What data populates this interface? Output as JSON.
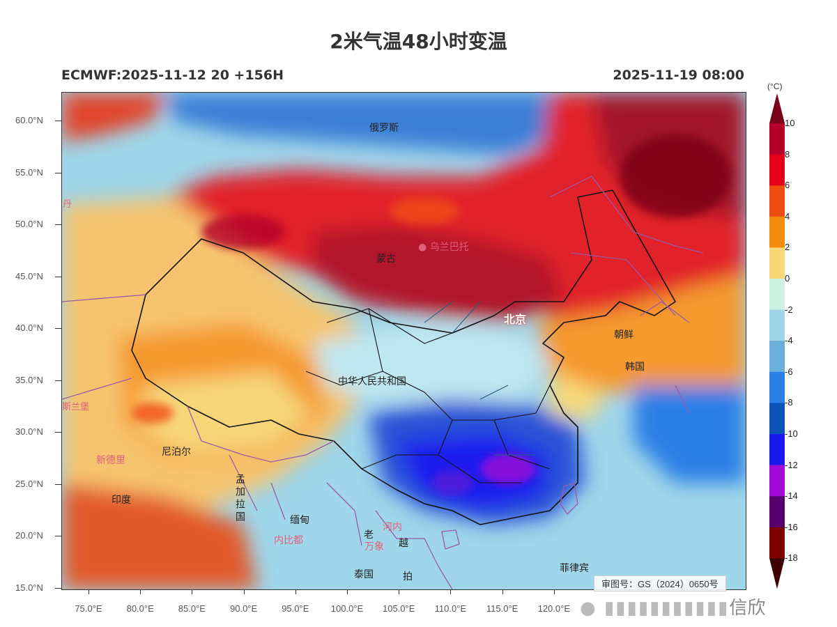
{
  "title": "2米气温48小时变温",
  "model_run": "ECMWF:2025-11-12 20 +156H",
  "valid_time": "2025-11-19 08:00",
  "approval_number": "审图号：GS（2024）0650号",
  "watermark": "信欣",
  "lat_labels": [
    "60.0°N",
    "55.0°N",
    "50.0°N",
    "45.0°N",
    "40.0°N",
    "35.0°N",
    "30.0°N",
    "25.0°N",
    "20.0°N",
    "15.0°N"
  ],
  "lon_labels": [
    "75.0°E",
    "80.0°E",
    "85.0°E",
    "90.0°E",
    "95.0°E",
    "100.0°E",
    "105.0°E",
    "110.0°E",
    "115.0°E",
    "120.0°E"
  ],
  "colorbar": {
    "unit": "(°C)",
    "labels": [
      "10",
      "8",
      "6",
      "4",
      "2",
      "0",
      "-2",
      "-4",
      "-6",
      "-8",
      "-10",
      "-12",
      "-14",
      "-16",
      "-18"
    ],
    "colors": [
      "#7a0019",
      "#b5002b",
      "#e6001a",
      "#f04d12",
      "#f48d0c",
      "#f7d97a",
      "#cdf2e4",
      "#9fd6ea",
      "#6aafd9",
      "#2a7fe6",
      "#0a52b5",
      "#1a1aef",
      "#a20bd8",
      "#56006e",
      "#7d0000",
      "#3d0000"
    ]
  },
  "places": {
    "russia": "俄罗斯",
    "mongolia": "蒙古",
    "ulaanbaatar": "乌兰巴托",
    "china": "中华人民共和国",
    "beijing": "北京",
    "north_korea": "朝鲜",
    "south_korea": "韩国",
    "nepal": "尼泊尔",
    "new_delhi": "新德里",
    "india": "印度",
    "bangladesh": "孟加拉国",
    "myanmar": "缅甸",
    "naypyidaw": "内比都",
    "hanoi": "河内",
    "laos": "老",
    "vientiane": "万象",
    "vietnam": "越",
    "thailand": "泰国",
    "cambodia": "拍",
    "philippines": "菲律宾",
    "dan": "丹",
    "islamabad": "斯兰堡"
  }
}
